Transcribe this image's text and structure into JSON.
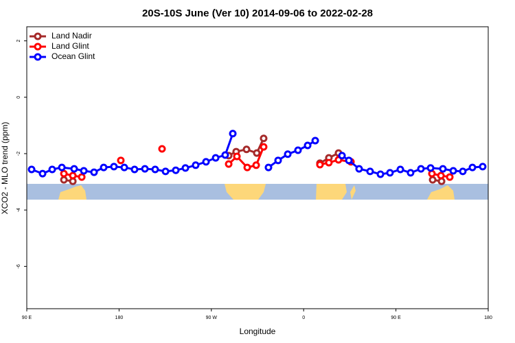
{
  "chart_data": {
    "type": "line",
    "title": "20S-10S June (Ver 10)   2014-09-06 to 2022-02-28",
    "x_label": "Longitude",
    "y_label": "XCO2 - MLO trend (ppm)",
    "xlim": [
      90,
      540
    ],
    "ylim": [
      -7.5,
      2.5
    ],
    "xticks": [
      {
        "value": 90,
        "label": "90 E"
      },
      180,
      {
        "value": 270,
        "label": "90 W"
      },
      {
        "value": 360,
        "label": "0"
      },
      {
        "value": 450,
        "label": "90 E"
      },
      {
        "value": 540,
        "label": "180"
      }
    ],
    "yticks": [
      2,
      0,
      -2,
      -4,
      -6
    ],
    "legend": "top-left",
    "series": [
      {
        "name": "Land Nadir",
        "color": "#a52a2a",
        "x": [
          126.2,
          134.9,
          null,
          286.9,
          294.2,
          304.3,
          314.3,
          321.0,
          null,
          375.9,
          384.6,
          394.0,
          null,
          485.8,
          494.5
        ],
        "values": [
          -2.93,
          -2.98,
          null,
          -2.07,
          -1.93,
          -1.85,
          -1.98,
          -1.46,
          null,
          -2.34,
          -2.15,
          -1.98,
          null,
          -2.93,
          -2.98
        ]
      },
      {
        "name": "Land Glint",
        "color": "#ff0000",
        "x": [
          126.2,
          134.9,
          143.6,
          null,
          181.7,
          null,
          221.9,
          null,
          286.9,
          294.9,
          305.0,
          313.7,
          321.0,
          null,
          375.9,
          384.6,
          394.0,
          406.1,
          null,
          485.1,
          493.9,
          502.5
        ],
        "values": [
          -2.71,
          -2.78,
          -2.83,
          null,
          -2.24,
          null,
          -1.83,
          null,
          -2.37,
          -2.1,
          -2.49,
          -2.41,
          -1.76,
          null,
          -2.39,
          -2.32,
          -2.22,
          -2.29,
          null,
          -2.71,
          -2.78,
          -2.83
        ]
      },
      {
        "name": "Ocean Glint",
        "color": "#0000ff",
        "x": [
          94.7,
          105.4,
          114.8,
          124.2,
          136.2,
          145.6,
          155.6,
          165.0,
          175.0,
          185.1,
          195.1,
          205.2,
          215.2,
          225.3,
          235.3,
          244.7,
          254.7,
          264.8,
          274.2,
          283.5,
          290.9,
          null,
          325.7,
          335.1,
          344.5,
          354.5,
          363.9,
          371.3,
          null,
          397.4,
          404.1,
          414.1,
          424.8,
          434.9,
          444.2,
          454.3,
          464.3,
          474.4,
          483.8,
          495.8,
          505.9,
          515.2,
          524.6,
          534.6
        ],
        "values": [
          -2.56,
          -2.71,
          -2.56,
          -2.49,
          -2.54,
          -2.61,
          -2.66,
          -2.49,
          -2.46,
          -2.49,
          -2.56,
          -2.54,
          -2.56,
          -2.63,
          -2.59,
          -2.51,
          -2.41,
          -2.29,
          -2.15,
          -2.05,
          -1.29,
          null,
          -2.49,
          -2.24,
          -2.02,
          -1.88,
          -1.71,
          -1.54,
          null,
          -2.07,
          -2.24,
          -2.54,
          -2.63,
          -2.73,
          -2.68,
          -2.56,
          -2.68,
          -2.54,
          -2.51,
          -2.54,
          -2.61,
          -2.63,
          -2.49,
          -2.46
        ]
      }
    ]
  }
}
